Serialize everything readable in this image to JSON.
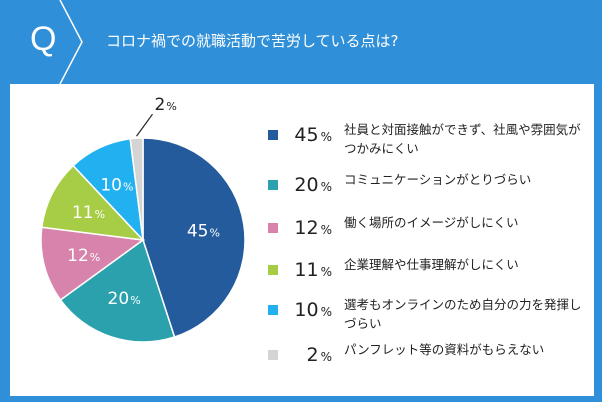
{
  "header": {
    "q_label": "Q",
    "question": "コロナ禍での就職活動で苦労している点は?"
  },
  "colors": {
    "background": "#2f8fd8",
    "panel": "#ffffff"
  },
  "chart_data": {
    "type": "pie",
    "title": "",
    "unit": "%",
    "legend_position": "right",
    "slices": [
      {
        "label": "社員と対面接触ができず、社風や雰囲気がつかみにくい",
        "value": 45,
        "color": "#245b9c"
      },
      {
        "label": "コミュニケーションがとりづらい",
        "value": 20,
        "color": "#2aa1ad"
      },
      {
        "label": "働く場所のイメージがしにくい",
        "value": 12,
        "color": "#d883ab"
      },
      {
        "label": "企業理解や仕事理解がしにくい",
        "value": 11,
        "color": "#a6cd45"
      },
      {
        "label": "選考もオンラインのため自分の力を発揮しづらい",
        "value": 10,
        "color": "#22b1f0"
      },
      {
        "label": "パンフレット等の資料がもらえない",
        "value": 2,
        "color": "#d4d4d4"
      }
    ]
  }
}
